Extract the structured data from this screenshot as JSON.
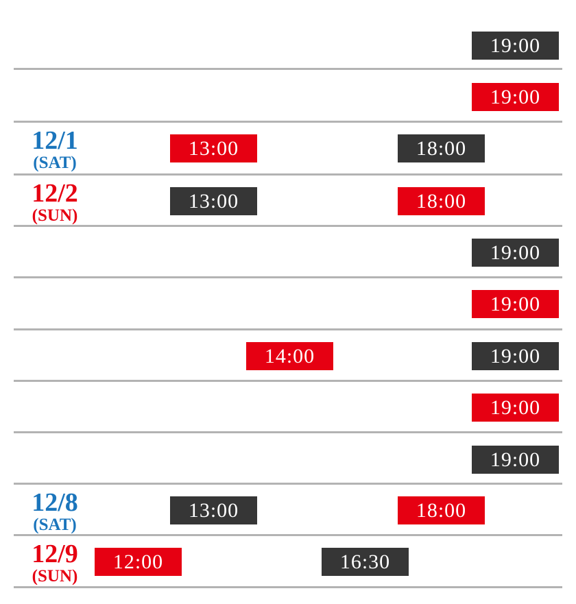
{
  "colors": {
    "red": "#e60012",
    "dark": "#363636",
    "blue": "#1b75bc",
    "line": "#b3b3b3",
    "badge_text": "#ffffff",
    "background": "#ffffff"
  },
  "schedule": {
    "rows": [
      {
        "date": null,
        "badges": [
          {
            "time": "19:00",
            "style": "dark"
          }
        ]
      },
      {
        "date": null,
        "badges": [
          {
            "time": "19:00",
            "style": "red"
          }
        ]
      },
      {
        "date": {
          "label": "12/1",
          "day": "(SAT)",
          "style": "blue"
        },
        "badges": [
          {
            "time": "13:00",
            "style": "red"
          },
          {
            "time": "18:00",
            "style": "dark"
          }
        ]
      },
      {
        "date": {
          "label": "12/2",
          "day": "(SUN)",
          "style": "red"
        },
        "badges": [
          {
            "time": "13:00",
            "style": "dark"
          },
          {
            "time": "18:00",
            "style": "red"
          }
        ]
      },
      {
        "date": null,
        "badges": [
          {
            "time": "19:00",
            "style": "dark"
          }
        ]
      },
      {
        "date": null,
        "badges": [
          {
            "time": "19:00",
            "style": "red"
          }
        ]
      },
      {
        "date": null,
        "badges": [
          {
            "time": "14:00",
            "style": "red"
          },
          {
            "time": "19:00",
            "style": "dark"
          }
        ]
      },
      {
        "date": null,
        "badges": [
          {
            "time": "19:00",
            "style": "red"
          }
        ]
      },
      {
        "date": null,
        "badges": [
          {
            "time": "19:00",
            "style": "dark"
          }
        ]
      },
      {
        "date": {
          "label": "12/8",
          "day": "(SAT)",
          "style": "blue"
        },
        "badges": [
          {
            "time": "13:00",
            "style": "dark"
          },
          {
            "time": "18:00",
            "style": "red"
          }
        ]
      },
      {
        "date": {
          "label": "12/9",
          "day": "(SUN)",
          "style": "red"
        },
        "badges": [
          {
            "time": "12:00",
            "style": "red"
          },
          {
            "time": "16:30",
            "style": "dark"
          }
        ]
      }
    ]
  }
}
